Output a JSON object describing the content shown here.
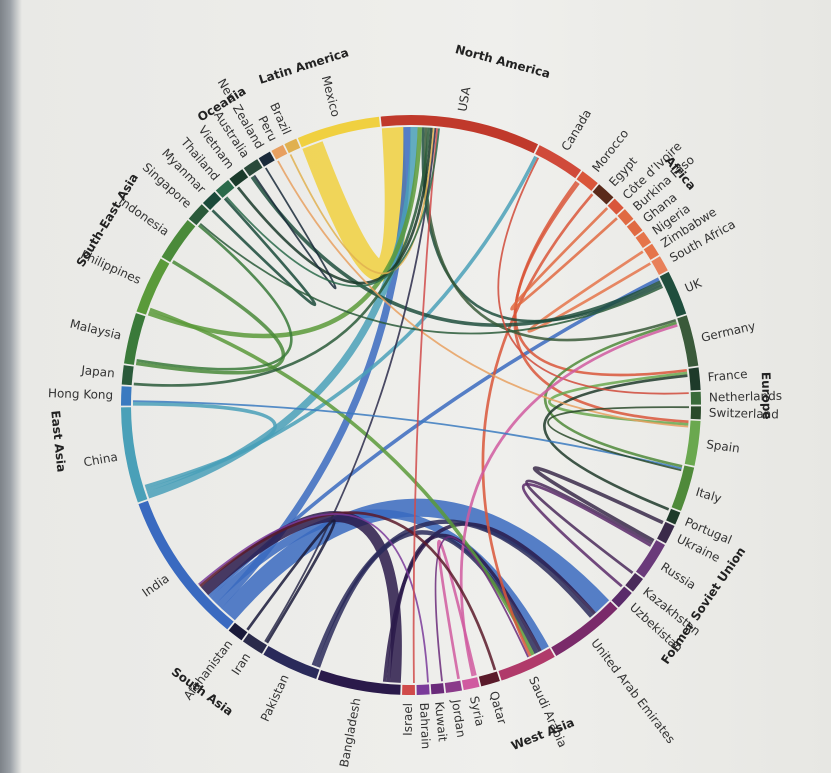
{
  "chart_data": {
    "type": "chord",
    "title": "",
    "regions": [
      {
        "name": "North America",
        "members": [
          "USA",
          "Canada"
        ]
      },
      {
        "name": "Africa",
        "members": [
          "Morocco",
          "Egypt",
          "Côte d'Ivoire",
          "Burkina Faso",
          "Ghana",
          "Nigeria",
          "Zimbabwe",
          "South Africa"
        ]
      },
      {
        "name": "Europe",
        "members": [
          "UK",
          "Germany",
          "France",
          "Netherlands",
          "Switzerland",
          "Spain",
          "Italy",
          "Portugal"
        ]
      },
      {
        "name": "Former Soviet Union",
        "members": [
          "Ukraine",
          "Russia",
          "Kazakhstan",
          "Uzbekistan"
        ]
      },
      {
        "name": "West Asia",
        "members": [
          "United Arab Emirates",
          "Saudi Arabia",
          "Qatar",
          "Syria",
          "Jordan",
          "Kuwait",
          "Bahrain",
          "Israel"
        ]
      },
      {
        "name": "South Asia",
        "members": [
          "Bangladesh",
          "Pakistan",
          "Iran",
          "Afghanistan",
          "India"
        ]
      },
      {
        "name": "East Asia",
        "members": [
          "China",
          "Hong Kong",
          "Japan"
        ]
      },
      {
        "name": "South-East Asia",
        "members": [
          "Malaysia",
          "Philippines",
          "Indonesia",
          "Singapore",
          "Myanmar",
          "Thailand",
          "Vietnam"
        ]
      },
      {
        "name": "Oceania",
        "members": [
          "Australia",
          "New Zealand"
        ]
      },
      {
        "name": "Latin America",
        "members": [
          "Peru",
          "Brazil",
          "Mexico"
        ]
      }
    ],
    "countries": [
      {
        "name": "USA",
        "region": "North America",
        "color": "#c0392b",
        "share": 5.0
      },
      {
        "name": "Canada",
        "region": "North America",
        "color": "#d04a3a",
        "share": 1.5
      },
      {
        "name": "Morocco",
        "region": "Africa",
        "color": "#d9563a",
        "share": 0.6
      },
      {
        "name": "Egypt",
        "region": "Africa",
        "color": "#5a2a1a",
        "share": 0.6
      },
      {
        "name": "Côte d’Ivoire",
        "region": "Africa",
        "color": "#d9563a",
        "share": 0.4
      },
      {
        "name": "Burkina Faso",
        "region": "Africa",
        "color": "#e06a42",
        "share": 0.4
      },
      {
        "name": "Ghana",
        "region": "Africa",
        "color": "#e06a42",
        "share": 0.4
      },
      {
        "name": "Nigeria",
        "region": "Africa",
        "color": "#e5744a",
        "share": 0.4
      },
      {
        "name": "Zimbabwe",
        "region": "Africa",
        "color": "#e5744a",
        "share": 0.4
      },
      {
        "name": "South Africa",
        "region": "Africa",
        "color": "#e8805a",
        "share": 0.5
      },
      {
        "name": "UK",
        "region": "Europe",
        "color": "#1f4e3d",
        "share": 1.4
      },
      {
        "name": "Germany",
        "region": "Europe",
        "color": "#3a5a3a",
        "share": 1.6
      },
      {
        "name": "France",
        "region": "Europe",
        "color": "#1d3a2a",
        "share": 0.7
      },
      {
        "name": "Netherlands",
        "region": "Europe",
        "color": "#3a6a3a",
        "share": 0.4
      },
      {
        "name": "Switzerland",
        "region": "Europe",
        "color": "#2a4a2a",
        "share": 0.4
      },
      {
        "name": "Spain",
        "region": "Europe",
        "color": "#6aa84f",
        "share": 1.4
      },
      {
        "name": "Italy",
        "region": "Europe",
        "color": "#4f8a3a",
        "share": 1.4
      },
      {
        "name": "Portugal",
        "region": "Europe",
        "color": "#1e3a2a",
        "share": 0.4
      },
      {
        "name": "Ukraine",
        "region": "Former Soviet Union",
        "color": "#3a2a4a",
        "share": 0.6
      },
      {
        "name": "Russia",
        "region": "Former Soviet Union",
        "color": "#6a3a7a",
        "share": 1.2
      },
      {
        "name": "Kazakhstan",
        "region": "Former Soviet Union",
        "color": "#4a2a5a",
        "share": 0.5
      },
      {
        "name": "Uzbekistan",
        "region": "Former Soviet Union",
        "color": "#5a2a6a",
        "share": 0.6
      },
      {
        "name": "United Arab Emirates",
        "region": "West Asia",
        "color": "#7a2a6a",
        "share": 2.4
      },
      {
        "name": "Saudi Arabia",
        "region": "West Asia",
        "color": "#b03a6a",
        "share": 1.8
      },
      {
        "name": "Qatar",
        "region": "West Asia",
        "color": "#5a1a2a",
        "share": 0.6
      },
      {
        "name": "Syria",
        "region": "West Asia",
        "color": "#d05aa0",
        "share": 0.5
      },
      {
        "name": "Jordan",
        "region": "West Asia",
        "color": "#8a3a8a",
        "share": 0.5
      },
      {
        "name": "Kuwait",
        "region": "West Asia",
        "color": "#6a2a7a",
        "share": 0.4
      },
      {
        "name": "Bahrain",
        "region": "West Asia",
        "color": "#7a3a9a",
        "share": 0.4
      },
      {
        "name": "Israel",
        "region": "West Asia",
        "color": "#d04a4a",
        "share": 0.4
      },
      {
        "name": "Bangladesh",
        "region": "South Asia",
        "color": "#2a1a4a",
        "share": 2.6
      },
      {
        "name": "Pakistan",
        "region": "South Asia",
        "color": "#2a2a5a",
        "share": 1.8
      },
      {
        "name": "Iran",
        "region": "South Asia",
        "color": "#2a2a4a",
        "share": 0.7
      },
      {
        "name": "Afghanistan",
        "region": "South Asia",
        "color": "#1a1a3a",
        "share": 0.5
      },
      {
        "name": "India",
        "region": "South Asia",
        "color": "#3a6ac0",
        "share": 4.8
      },
      {
        "name": "China",
        "region": "East Asia",
        "color": "#4aa0b8",
        "share": 3.0
      },
      {
        "name": "Hong Kong",
        "region": "East Asia",
        "color": "#3a7ac0",
        "share": 0.6
      },
      {
        "name": "Japan",
        "region": "East Asia",
        "color": "#2a5a3a",
        "share": 0.6
      },
      {
        "name": "Malaysia",
        "region": "South-East Asia",
        "color": "#3a7a3a",
        "share": 1.6
      },
      {
        "name": "Philippines",
        "region": "South-East Asia",
        "color": "#5a9a3a",
        "share": 1.8
      },
      {
        "name": "Indonesia",
        "region": "South-East Asia",
        "color": "#4a8a3a",
        "share": 1.4
      },
      {
        "name": "Singapore",
        "region": "South-East Asia",
        "color": "#2a5a3a",
        "share": 0.6
      },
      {
        "name": "Myanmar",
        "region": "South-East Asia",
        "color": "#1a4a3a",
        "share": 0.5
      },
      {
        "name": "Thailand",
        "region": "South-East Asia",
        "color": "#2a6a4a",
        "share": 0.5
      },
      {
        "name": "Vietnam",
        "region": "South-East Asia",
        "color": "#1a3a2a",
        "share": 0.5
      },
      {
        "name": "Australia",
        "region": "Oceania",
        "color": "#2a4a3a",
        "share": 0.5
      },
      {
        "name": "New Zealand",
        "region": "Oceania",
        "color": "#1a2a3a",
        "share": 0.4
      },
      {
        "name": "Peru",
        "region": "Latin America",
        "color": "#e8a060",
        "share": 0.4
      },
      {
        "name": "Brazil",
        "region": "Latin America",
        "color": "#e0b050",
        "share": 0.4
      },
      {
        "name": "Mexico",
        "region": "Latin America",
        "color": "#f0d040",
        "share": 2.6
      }
    ],
    "links": [
      {
        "source": "Mexico",
        "target": "USA",
        "value": 2.4,
        "color": "#f0d040"
      },
      {
        "source": "India",
        "target": "United Arab Emirates",
        "value": 2.0,
        "color": "#3a6ac0"
      },
      {
        "source": "India",
        "target": "USA",
        "value": 0.8,
        "color": "#3a6ac0"
      },
      {
        "source": "India",
        "target": "Saudi Arabia",
        "value": 0.9,
        "color": "#3a6ac0"
      },
      {
        "source": "India",
        "target": "UK",
        "value": 0.4,
        "color": "#3a6ac0"
      },
      {
        "source": "China",
        "target": "USA",
        "value": 0.8,
        "color": "#4aa0b8"
      },
      {
        "source": "China",
        "target": "Canada",
        "value": 0.4,
        "color": "#4aa0b8"
      },
      {
        "source": "China",
        "target": "Hong Kong",
        "value": 0.4,
        "color": "#4aa0b8"
      },
      {
        "source": "Bangladesh",
        "target": "India",
        "value": 1.2,
        "color": "#2a1a4a"
      },
      {
        "source": "Bangladesh",
        "target": "Saudi Arabia",
        "value": 0.4,
        "color": "#2a1a4a"
      },
      {
        "source": "Bangladesh",
        "target": "United Arab Emirates",
        "value": 0.4,
        "color": "#2a1a4a"
      },
      {
        "source": "Pakistan",
        "target": "Saudi Arabia",
        "value": 0.5,
        "color": "#2a2a5a"
      },
      {
        "source": "Pakistan",
        "target": "United Arab Emirates",
        "value": 0.5,
        "color": "#2a2a5a"
      },
      {
        "source": "Afghanistan",
        "target": "Iran",
        "value": 0.3,
        "color": "#1a1a3a"
      },
      {
        "source": "Philippines",
        "target": "USA",
        "value": 0.5,
        "color": "#5a9a3a"
      },
      {
        "source": "Philippines",
        "target": "Saudi Arabia",
        "value": 0.4,
        "color": "#5a9a3a"
      },
      {
        "source": "Indonesia",
        "target": "Malaysia",
        "value": 0.4,
        "color": "#4a8a3a"
      },
      {
        "source": "Myanmar",
        "target": "Thailand",
        "value": 0.3,
        "color": "#1a4a3a"
      },
      {
        "source": "Malaysia",
        "target": "Singapore",
        "value": 0.3,
        "color": "#3a7a3a"
      },
      {
        "source": "Ukraine",
        "target": "Russia",
        "value": 0.4,
        "color": "#3a2a4a"
      },
      {
        "source": "Kazakhstan",
        "target": "Russia",
        "value": 0.3,
        "color": "#4a2a5a"
      },
      {
        "source": "Uzbekistan",
        "target": "Russia",
        "value": 0.3,
        "color": "#5a2a6a"
      },
      {
        "source": "Morocco",
        "target": "Spain",
        "value": 0.3,
        "color": "#d9563a"
      },
      {
        "source": "Morocco",
        "target": "France",
        "value": 0.3,
        "color": "#d9563a"
      },
      {
        "source": "Egypt",
        "target": "Saudi Arabia",
        "value": 0.3,
        "color": "#d9563a"
      },
      {
        "source": "Burkina Faso",
        "target": "Côte d’Ivoire",
        "value": 0.3,
        "color": "#e06a42"
      },
      {
        "source": "Zimbabwe",
        "target": "South Africa",
        "value": 0.3,
        "color": "#e5744a"
      },
      {
        "source": "UK",
        "target": "Australia",
        "value": 0.4,
        "color": "#1f4e3d"
      },
      {
        "source": "UK",
        "target": "USA",
        "value": 0.3,
        "color": "#1f4e3d"
      },
      {
        "source": "Germany",
        "target": "USA",
        "value": 0.3,
        "color": "#3a5a3a"
      },
      {
        "source": "Italy",
        "target": "Germany",
        "value": 0.3,
        "color": "#4f8a3a"
      },
      {
        "source": "Spain",
        "target": "France",
        "value": 0.3,
        "color": "#6aa84f"
      },
      {
        "source": "Portugal",
        "target": "France",
        "value": 0.3,
        "color": "#1e3a2a"
      },
      {
        "source": "Japan",
        "target": "USA",
        "value": 0.3,
        "color": "#2a5a3a"
      },
      {
        "source": "Vietnam",
        "target": "USA",
        "value": 0.3,
        "color": "#1a3a2a"
      },
      {
        "source": "Brazil",
        "target": "USA",
        "value": 0.2,
        "color": "#e0b050"
      },
      {
        "source": "Peru",
        "target": "Spain",
        "value": 0.2,
        "color": "#e8a060"
      },
      {
        "source": "Canada",
        "target": "Netherlands",
        "value": 0.2,
        "color": "#d04a3a"
      },
      {
        "source": "Iran",
        "target": "USA",
        "value": 0.2,
        "color": "#2a2a4a"
      },
      {
        "source": "Syria",
        "target": "Jordan",
        "value": 0.3,
        "color": "#d05aa0"
      },
      {
        "source": "Syria",
        "target": "Germany",
        "value": 0.3,
        "color": "#d05aa0"
      },
      {
        "source": "Kuwait",
        "target": "Saudi Arabia",
        "value": 0.2,
        "color": "#6a2a7a"
      },
      {
        "source": "Qatar",
        "target": "India",
        "value": 0.3,
        "color": "#5a1a2a"
      },
      {
        "source": "Hong Kong",
        "target": "Italy",
        "value": 0.2,
        "color": "#3a7ac0"
      },
      {
        "source": "Singapore",
        "target": "UK",
        "value": 0.2,
        "color": "#2a5a3a"
      },
      {
        "source": "Switzerland",
        "target": "Italy",
        "value": 0.2,
        "color": "#2a4a2a"
      },
      {
        "source": "Bahrain",
        "target": "India",
        "value": 0.2,
        "color": "#7a3a9a"
      },
      {
        "source": "Israel",
        "target": "USA",
        "value": 0.2,
        "color": "#d04a4a"
      },
      {
        "source": "New Zealand",
        "target": "Australia",
        "value": 0.2,
        "color": "#1a2a3a"
      },
      {
        "source": "Thailand",
        "target": "USA",
        "value": 0.2,
        "color": "#2a6a4a"
      }
    ]
  }
}
